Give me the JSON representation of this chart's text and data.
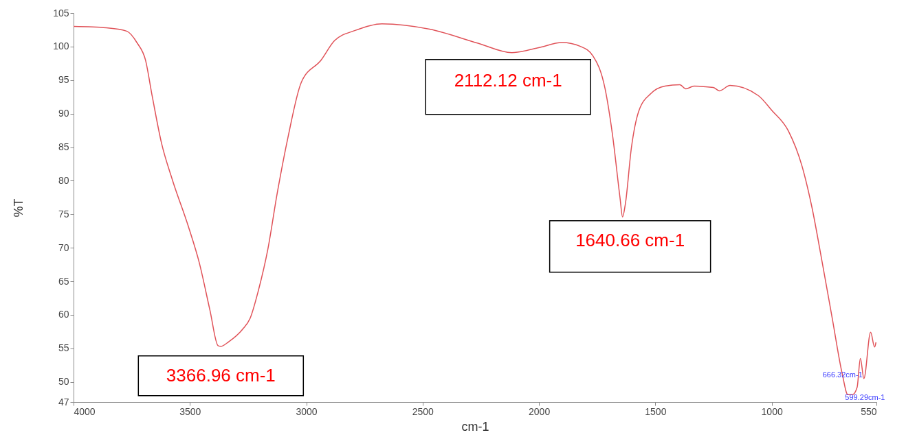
{
  "chart_data": {
    "type": "line",
    "xlabel": "cm-1",
    "ylabel": "%T",
    "xlim": [
      4000,
      550
    ],
    "xticks": [
      4000,
      3500,
      3000,
      2500,
      2000,
      1500,
      1000,
      550
    ],
    "ylim": [
      47,
      105
    ],
    "yticks": [
      47,
      50,
      55,
      60,
      65,
      70,
      75,
      80,
      85,
      90,
      95,
      100,
      105
    ],
    "grid": false,
    "marker": "none",
    "line_style": "solid",
    "series": [
      {
        "color": "#e05258",
        "x": [
          4000,
          3859,
          3772,
          3726,
          3691,
          3662,
          3622,
          3576,
          3506,
          3460,
          3414,
          3379,
          3367,
          3333,
          3275,
          3241,
          3206,
          3165,
          3125,
          3079,
          3021,
          2936,
          2878,
          2790,
          2675,
          2470,
          2262,
          2117,
          2005,
          1901,
          1820,
          1768,
          1716,
          1684,
          1652,
          1641,
          1629,
          1603,
          1571,
          1519,
          1459,
          1395,
          1369,
          1334,
          1251,
          1225,
          1179,
          1058,
          1000,
          928,
          870,
          827,
          783,
          740,
          697,
          673,
          653,
          633,
          619,
          604,
          575,
          558,
          552
        ],
        "values": [
          103.0,
          102.8,
          102.3,
          100.5,
          98.0,
          92.6,
          85.6,
          80.2,
          73.1,
          67.8,
          60.7,
          55.4,
          55.3,
          56.0,
          57.8,
          59.5,
          63.6,
          69.8,
          78.1,
          86.4,
          94.7,
          98.0,
          100.9,
          102.4,
          103.4,
          102.6,
          100.5,
          99.1,
          99.8,
          100.6,
          100.0,
          98.6,
          93.7,
          86.8,
          77.5,
          74.6,
          76.5,
          84.9,
          90.4,
          93.0,
          94.1,
          94.3,
          93.7,
          94.1,
          93.9,
          93.4,
          94.2,
          92.7,
          90.5,
          87.4,
          82.2,
          76.0,
          67.8,
          59.5,
          51.2,
          48.1,
          48.1,
          49.2,
          53.5,
          50.5,
          57.4,
          55.2,
          55.9
        ]
      }
    ],
    "annotations": [
      {
        "text": "3366.96 cm-1",
        "x": 3367,
        "y": 55.3
      },
      {
        "text": "2112.12 cm-1",
        "x": 2112,
        "y": 99.1
      },
      {
        "text": "1640.66 cm-1",
        "x": 1641,
        "y": 74.6
      },
      {
        "text": "666.32cm-1",
        "x": 666,
        "y": 48.5
      },
      {
        "text": "599.29cm-1",
        "x": 599,
        "y": 50.3
      }
    ]
  }
}
